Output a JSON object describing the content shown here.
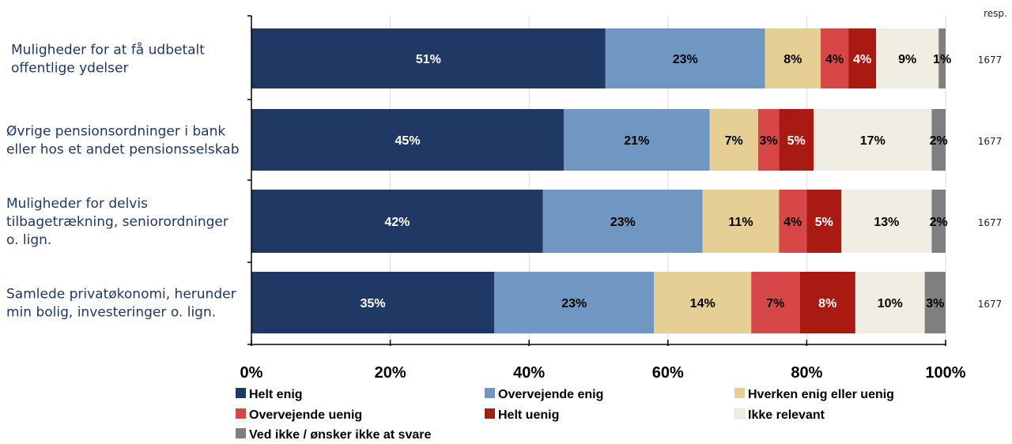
{
  "chart_data": {
    "type": "bar",
    "orientation": "horizontal",
    "stacked": "percent",
    "categories": [
      [
        "Muligheder for at få udbetalt",
        "offentlige ydelser"
      ],
      [
        "Øvrige pensionsordninger i bank",
        "eller hos et andet pensionsselskab"
      ],
      [
        "Muligheder for delvis",
        "tilbagetrækning, seniorordninger",
        "o. lign."
      ],
      [
        "Samlede privatøkonomi, herunder",
        "min bolig, investeringer  o. lign."
      ]
    ],
    "series": [
      {
        "name": "Helt enig",
        "color": "#203864",
        "label_color": "#ffffff",
        "values": [
          51,
          45,
          42,
          35
        ]
      },
      {
        "name": "Overvejende enig",
        "color": "#6f97c2",
        "label_color": "#000000",
        "values": [
          23,
          21,
          23,
          23
        ]
      },
      {
        "name": "Hverken enig eller uenig",
        "color": "#e6cf94",
        "label_color": "#000000",
        "values": [
          8,
          7,
          11,
          14
        ]
      },
      {
        "name": "Overvejende uenig",
        "color": "#d84747",
        "label_color": "#000000",
        "values": [
          4,
          3,
          4,
          7
        ]
      },
      {
        "name": "Helt uenig",
        "color": "#a81a12",
        "label_color": "#ffffff",
        "values": [
          4,
          5,
          5,
          8
        ]
      },
      {
        "name": "Ikke relevant",
        "color": "#f0ede3",
        "label_color": "#000000",
        "values": [
          9,
          17,
          13,
          10
        ]
      },
      {
        "name": "Ved ikke / ønsker ikke at svare",
        "color": "#7f7f7f",
        "label_color": "#000000",
        "values": [
          1,
          2,
          2,
          3
        ]
      }
    ],
    "resp_header": "resp.",
    "resp_values": [
      "1677",
      "1677",
      "1677",
      "1677"
    ],
    "xticks": [
      "0%",
      "20%",
      "40%",
      "60%",
      "80%",
      "100%"
    ],
    "xlim": [
      0,
      100
    ],
    "grid": "vertical",
    "legend_position": "bottom"
  }
}
